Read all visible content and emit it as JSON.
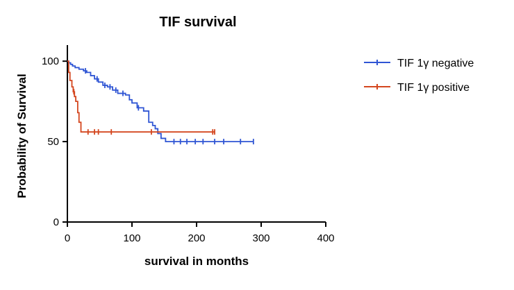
{
  "chart_data": {
    "type": "line",
    "subtype": "kaplan-meier",
    "title": "TIF survival",
    "xlabel": "survival in months",
    "ylabel": "Probability of Survival",
    "xlim": [
      0,
      400
    ],
    "ylim": [
      0,
      110
    ],
    "x_ticks": [
      0,
      100,
      200,
      300,
      400
    ],
    "y_ticks": [
      0,
      50,
      100
    ],
    "grid": false,
    "legend_position": "top-right",
    "series": [
      {
        "name": "TIF 1γ negative",
        "color": "#2f55d4",
        "steps": [
          [
            0,
            100
          ],
          [
            2,
            99
          ],
          [
            5,
            98
          ],
          [
            8,
            97
          ],
          [
            12,
            96
          ],
          [
            18,
            95
          ],
          [
            25,
            94
          ],
          [
            30,
            93
          ],
          [
            36,
            91
          ],
          [
            42,
            89
          ],
          [
            48,
            87
          ],
          [
            55,
            85
          ],
          [
            62,
            84
          ],
          [
            70,
            82
          ],
          [
            78,
            80
          ],
          [
            90,
            79
          ],
          [
            96,
            76
          ],
          [
            100,
            74
          ],
          [
            108,
            71
          ],
          [
            118,
            69
          ],
          [
            126,
            62
          ],
          [
            132,
            60
          ],
          [
            136,
            58
          ],
          [
            140,
            55
          ],
          [
            145,
            52
          ],
          [
            152,
            50
          ],
          [
            288,
            50
          ]
        ],
        "censored": [
          28,
          46,
          58,
          66,
          75,
          86,
          110,
          165,
          175,
          185,
          198,
          210,
          228,
          242,
          268,
          288
        ]
      },
      {
        "name": "TIF 1γ positive",
        "color": "#d4461e",
        "steps": [
          [
            0,
            100
          ],
          [
            2,
            93
          ],
          [
            4,
            88
          ],
          [
            7,
            84
          ],
          [
            9,
            81
          ],
          [
            11,
            78
          ],
          [
            13,
            75
          ],
          [
            16,
            68
          ],
          [
            18,
            62
          ],
          [
            21,
            56
          ],
          [
            228,
            56
          ]
        ],
        "censored": [
          10,
          32,
          42,
          48,
          68,
          130,
          225,
          228
        ]
      }
    ]
  }
}
